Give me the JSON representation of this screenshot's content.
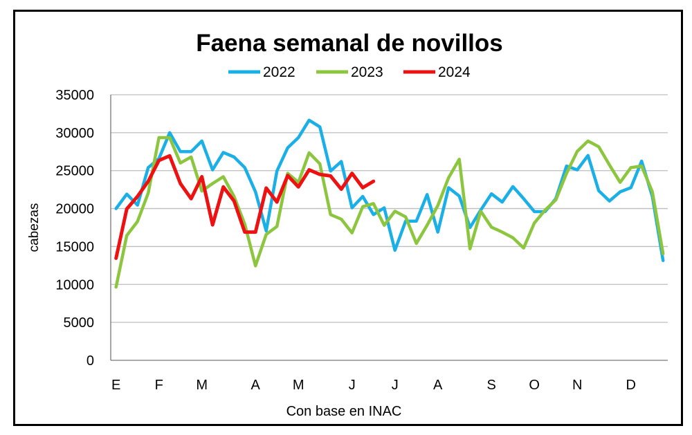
{
  "chart_data": {
    "type": "line",
    "title": "Faena semanal de novillos",
    "xlabel": "Con base en INAC",
    "ylabel": "cabezas",
    "ylim": [
      0,
      35000
    ],
    "yticks": [
      0,
      5000,
      10000,
      15000,
      20000,
      25000,
      30000,
      35000
    ],
    "grid": true,
    "legend_position": "top",
    "x_unit": "week",
    "month_labels": [
      {
        "label": "E",
        "week": 0
      },
      {
        "label": "F",
        "week": 4
      },
      {
        "label": "M",
        "week": 8
      },
      {
        "label": "A",
        "week": 13
      },
      {
        "label": "M",
        "week": 17
      },
      {
        "label": "J",
        "week": 22
      },
      {
        "label": "J",
        "week": 26
      },
      {
        "label": "A",
        "week": 30
      },
      {
        "label": "S",
        "week": 35
      },
      {
        "label": "O",
        "week": 39
      },
      {
        "label": "N",
        "week": 43
      },
      {
        "label": "D",
        "week": 48
      }
    ],
    "series": [
      {
        "name": "2022",
        "color": "#1AAFE6",
        "values": [
          20000,
          21900,
          20450,
          25400,
          26600,
          30000,
          27500,
          27500,
          28900,
          25100,
          27400,
          26800,
          25400,
          22200,
          17050,
          24950,
          28000,
          29350,
          31650,
          30770,
          24950,
          26200,
          20100,
          21600,
          19200,
          20100,
          14500,
          18350,
          18350,
          21850,
          16900,
          22750,
          21650,
          17500,
          19800,
          21950,
          20850,
          22900,
          21300,
          19600,
          19600,
          21300,
          25600,
          25100,
          27000,
          22350,
          21000,
          22200,
          22750,
          26250,
          21600,
          13150
        ]
      },
      {
        "name": "2023",
        "color": "#8CC63F",
        "values": [
          9650,
          16450,
          18300,
          22050,
          29350,
          29350,
          26000,
          26800,
          22300,
          23300,
          24200,
          21600,
          17950,
          12450,
          16600,
          17650,
          24650,
          23450,
          27350,
          25900,
          19200,
          18600,
          16800,
          20250,
          20650,
          17800,
          19650,
          18900,
          15400,
          17800,
          20400,
          24050,
          26500,
          14700,
          19650,
          17550,
          16900,
          16150,
          14800,
          18100,
          19800,
          21150,
          24650,
          27550,
          28900,
          28150,
          25750,
          23450,
          25400,
          25600,
          22200,
          14050
        ]
      },
      {
        "name": "2024",
        "color": "#EE1111",
        "values": [
          13450,
          19950,
          21600,
          23600,
          26350,
          26950,
          23300,
          21300,
          24200,
          17850,
          22850,
          21000,
          16900,
          16900,
          22700,
          20850,
          24350,
          22850,
          25100,
          24500,
          24300,
          22550,
          24650,
          22750,
          23600
        ]
      }
    ]
  }
}
